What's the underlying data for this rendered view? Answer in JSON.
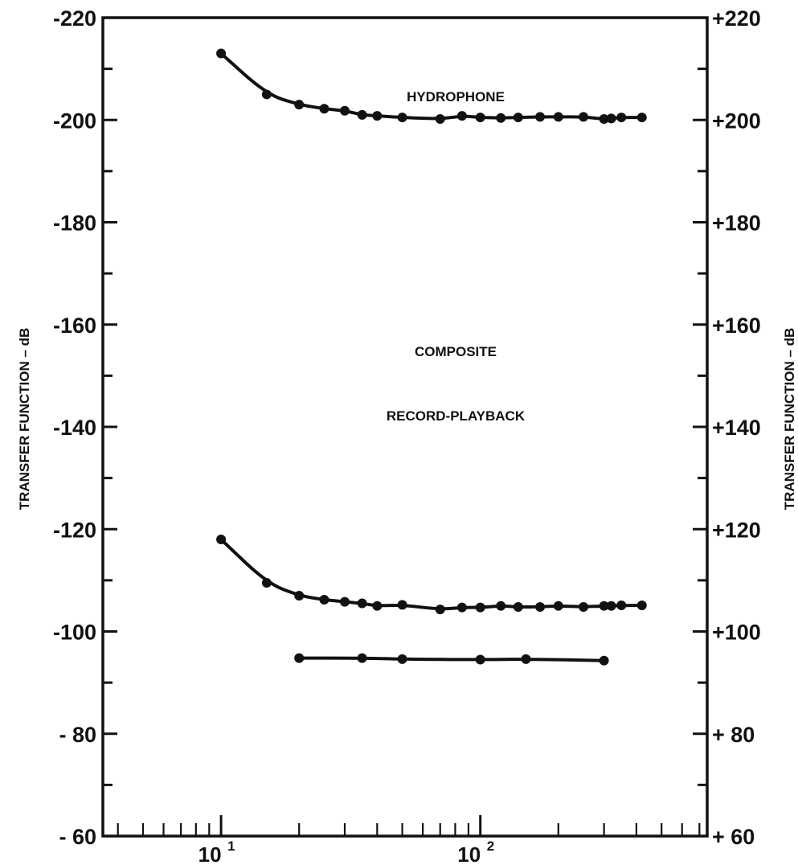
{
  "chart_data": {
    "type": "line",
    "xscale": "log",
    "xlim": [
      3.5,
      750
    ],
    "ylim_left": [
      -60,
      -220
    ],
    "ylim_right": [
      60,
      220
    ],
    "x_tick_labels": [
      {
        "value": 10,
        "base": "10",
        "exp": "1"
      },
      {
        "value": 100,
        "base": "10",
        "exp": "2"
      }
    ],
    "y_left_ticks": [
      -220,
      -200,
      -180,
      -160,
      -140,
      -120,
      -100,
      -80,
      -60
    ],
    "y_left_tick_labels": [
      "-220",
      "-200",
      "-180",
      "-160",
      "-140",
      "-120",
      "-100",
      "- 80",
      "- 60"
    ],
    "y_right_ticks": [
      220,
      200,
      180,
      160,
      140,
      120,
      100,
      80,
      60
    ],
    "y_right_tick_labels": [
      "+220",
      "+200",
      "+180",
      "+160",
      "+140",
      "+120",
      "+100",
      "+ 80",
      "+ 60"
    ],
    "ylabel_left": "TRANSFER FUNCTION – dB",
    "ylabel_right": "TRANSFER FUNCTION – dB",
    "grid": false,
    "series": [
      {
        "name": "HYDROPHONE",
        "x": [
          10,
          15,
          20,
          25,
          30,
          35,
          40,
          50,
          70,
          85,
          100,
          120,
          140,
          170,
          200,
          250,
          300,
          320,
          350,
          420
        ],
        "y": [
          -213,
          -205,
          -203,
          -202.2,
          -201.8,
          -201,
          -200.8,
          -200.5,
          -200.2,
          -200.8,
          -200.5,
          -200.4,
          -200.5,
          -200.6,
          -200.6,
          -200.6,
          -200.2,
          -200.3,
          -200.5,
          -200.5
        ]
      },
      {
        "name": "COMPOSITE",
        "x": [
          10,
          15,
          20,
          25,
          30,
          35,
          40,
          50,
          70,
          85,
          100,
          120,
          140,
          170,
          200,
          250,
          300,
          320,
          350,
          420
        ],
        "y": [
          -118,
          -109.5,
          -107,
          -106.2,
          -105.8,
          -105.5,
          -105,
          -105.2,
          -104.3,
          -104.7,
          -104.7,
          -105,
          -104.8,
          -104.8,
          -105,
          -104.8,
          -105,
          -105,
          -105.1,
          -105.1
        ]
      },
      {
        "name": "RECORD-PLAYBACK",
        "x": [
          20,
          35,
          50,
          100,
          150,
          300
        ],
        "y": [
          -94.8,
          -94.8,
          -94.6,
          -94.5,
          -94.6,
          -94.3
        ]
      }
    ]
  }
}
